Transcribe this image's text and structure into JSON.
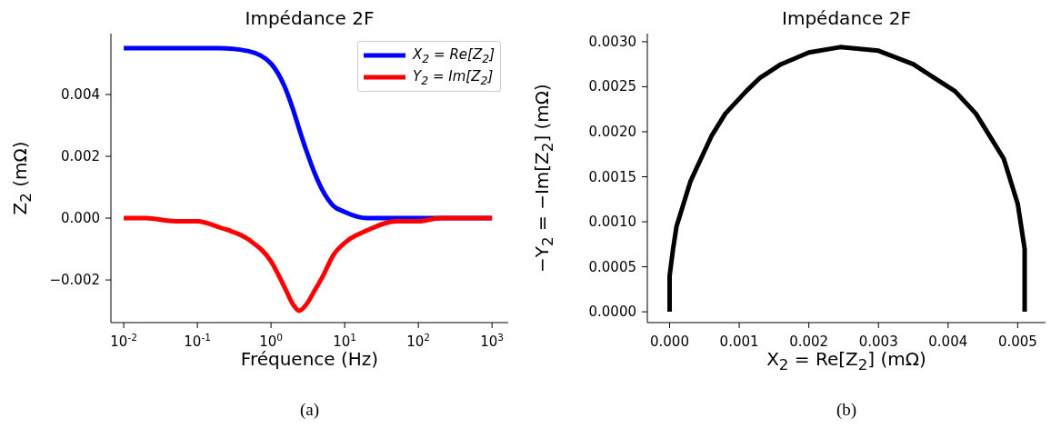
{
  "chart_data": [
    {
      "type": "line",
      "title": "Impédance 2F",
      "xlabel": "Fréquence (Hz)",
      "ylabel": "Z$_{2}$ (mΩ)",
      "log": "x",
      "legend": "top right",
      "annotations": [
        "(a)"
      ],
      "x": [
        0.01,
        0.02,
        0.05,
        0.1,
        0.2,
        0.5,
        1,
        1.5,
        2,
        2.4,
        3,
        4,
        5,
        7,
        10,
        20,
        50,
        100,
        200,
        500,
        1000
      ],
      "xlim": [
        0.0067,
        1660
      ],
      "xticks": [
        {
          "value": 0.01,
          "label": "10$^{-2}$"
        },
        {
          "value": 0.1,
          "label": "10$^{-1}$"
        },
        {
          "value": 1,
          "label": "10$^{0}$"
        },
        {
          "value": 10,
          "label": "10$^{1}$"
        },
        {
          "value": 100,
          "label": "10$^{2}$"
        },
        {
          "value": 1000,
          "label": "10$^{3}$"
        }
      ],
      "ylim": [
        -0.00338,
        0.00597
      ],
      "yticks": [
        {
          "value": -0.002,
          "label": "−0.002"
        },
        {
          "value": 0,
          "label": "0.000"
        },
        0.002,
        0.004
      ],
      "series": [
        {
          "name": "X$_{2}$ = Re[Z$_{2}$]",
          "color": "#0000ff",
          "values": [
            0.0055,
            0.0055,
            0.0055,
            0.0055,
            0.0055,
            0.0054,
            0.005,
            0.0043,
            0.0035,
            0.0029,
            0.0022,
            0.0014,
            0.0009,
            0.0004,
            0.0002,
            0,
            0,
            0,
            0,
            0,
            0
          ]
        },
        {
          "name": "Y$_{2}$ = Im[Z$_{2}$]",
          "color": "#ff0000",
          "values": [
            0,
            0,
            -0.0001,
            -0.0001,
            -0.0003,
            -0.0007,
            -0.0014,
            -0.0022,
            -0.0028,
            -0.003,
            -0.0028,
            -0.0023,
            -0.0019,
            -0.0012,
            -0.0008,
            -0.0004,
            -0.0001,
            -0.0001,
            0,
            0,
            0
          ]
        }
      ]
    },
    {
      "type": "line",
      "title": "Impédance 2F",
      "xlabel": "X$_{2}$ = Re[Z$_{2}$] (mΩ)",
      "ylabel": "−Y$_{2}$ = −Im[Z$_{2}$] (mΩ)",
      "annotations": [
        "(b)"
      ],
      "x": [
        0,
        0,
        0,
        5e-05,
        0.0001,
        0.0002,
        0.0003,
        0.00045,
        0.0006,
        0.0008,
        0.0011,
        0.0013,
        0.0016,
        0.002,
        0.00245,
        0.003,
        0.0035,
        0.0038,
        0.0041,
        0.0044,
        0.0046,
        0.0048,
        0.0049,
        0.005,
        0.00505,
        0.0051,
        0.0051,
        0.0051,
        0.0051
      ],
      "xlim": [
        -0.00032,
        0.0054
      ],
      "xticks": [
        {
          "value": 0,
          "label": "0.000"
        },
        0.001,
        0.002,
        0.003,
        0.004,
        0.005
      ],
      "ylim": [
        -0.00012,
        0.00309
      ],
      "yticks": [
        {
          "value": 0,
          "label": "0.0000"
        },
        0.0005,
        {
          "value": 0.001,
          "label": "0.0010"
        },
        0.0015,
        {
          "value": 0.002,
          "label": "0.0020"
        },
        0.0025,
        {
          "value": 0.003,
          "label": "0.0030"
        }
      ],
      "series": [
        {
          "color": "#000000",
          "values": [
            0,
            0.0002,
            0.0004,
            0.0007,
            0.00095,
            0.0012,
            0.00145,
            0.0017,
            0.00195,
            0.0022,
            0.00245,
            0.0026,
            0.00275,
            0.00288,
            0.00294,
            0.0029,
            0.00275,
            0.0026,
            0.00245,
            0.0022,
            0.00195,
            0.0017,
            0.00145,
            0.0012,
            0.00095,
            0.0007,
            0.0004,
            0.0002,
            0
          ]
        }
      ]
    }
  ]
}
